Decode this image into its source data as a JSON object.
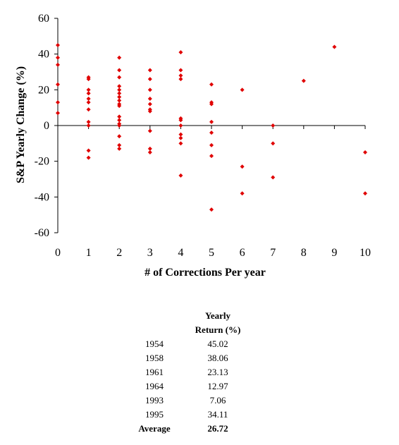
{
  "chart_data": {
    "type": "scatter",
    "title": "",
    "xlabel": "# of Corrections Per year",
    "ylabel": "S&P Yearly Change (%)",
    "xlim": [
      0,
      10
    ],
    "ylim": [
      -60,
      60
    ],
    "x_ticks": [
      "0",
      "1",
      "2",
      "3",
      "4",
      "5",
      "6",
      "7",
      "8",
      "9",
      "10"
    ],
    "y_ticks": [
      "60",
      "40",
      "20",
      "0",
      "-20",
      "-40",
      "-60"
    ],
    "grid": false,
    "legend": "none",
    "marker_color": "#e00000",
    "series": [
      {
        "points": [
          [
            0,
            45
          ],
          [
            0,
            38
          ],
          [
            0,
            34
          ],
          [
            0,
            23
          ],
          [
            0,
            13
          ],
          [
            0,
            7
          ],
          [
            1,
            27
          ],
          [
            1,
            26
          ],
          [
            1,
            20
          ],
          [
            1,
            18
          ],
          [
            1,
            15
          ],
          [
            1,
            13
          ],
          [
            1,
            9
          ],
          [
            1,
            2
          ],
          [
            1,
            0
          ],
          [
            1,
            -14
          ],
          [
            1,
            -18
          ],
          [
            2,
            38
          ],
          [
            2,
            31
          ],
          [
            2,
            27
          ],
          [
            2,
            22
          ],
          [
            2,
            20
          ],
          [
            2,
            18
          ],
          [
            2,
            16
          ],
          [
            2,
            14
          ],
          [
            2,
            12
          ],
          [
            2,
            11
          ],
          [
            2,
            5
          ],
          [
            2,
            3
          ],
          [
            2,
            1
          ],
          [
            2,
            0
          ],
          [
            2,
            -6
          ],
          [
            2,
            -11
          ],
          [
            2,
            -13
          ],
          [
            3,
            31
          ],
          [
            3,
            26
          ],
          [
            3,
            20
          ],
          [
            3,
            15
          ],
          [
            3,
            12
          ],
          [
            3,
            9
          ],
          [
            3,
            8
          ],
          [
            3,
            -3
          ],
          [
            3,
            -13
          ],
          [
            3,
            -15
          ],
          [
            4,
            41
          ],
          [
            4,
            31
          ],
          [
            4,
            28
          ],
          [
            4,
            26
          ],
          [
            4,
            4
          ],
          [
            4,
            3
          ],
          [
            4,
            0
          ],
          [
            4,
            -5
          ],
          [
            4,
            -7
          ],
          [
            4,
            -10
          ],
          [
            4,
            -28
          ],
          [
            5,
            23
          ],
          [
            5,
            13
          ],
          [
            5,
            12
          ],
          [
            5,
            2
          ],
          [
            5,
            -4
          ],
          [
            5,
            -11
          ],
          [
            5,
            -17
          ],
          [
            5,
            -47
          ],
          [
            6,
            20
          ],
          [
            6,
            -23
          ],
          [
            6,
            -38
          ],
          [
            7,
            0
          ],
          [
            7,
            -10
          ],
          [
            7,
            -29
          ],
          [
            8,
            25
          ],
          [
            9,
            44
          ],
          [
            10,
            -15
          ],
          [
            10,
            -38
          ]
        ]
      }
    ]
  },
  "table": {
    "header_line1": "Yearly",
    "header_line2": "Return (%)",
    "rows": [
      {
        "year": "1954",
        "value": "45.02"
      },
      {
        "year": "1958",
        "value": "38.06"
      },
      {
        "year": "1961",
        "value": "23.13"
      },
      {
        "year": "1964",
        "value": "12.97"
      },
      {
        "year": "1993",
        "value": "7.06"
      },
      {
        "year": "1995",
        "value": "34.11"
      }
    ],
    "average_label": "Average",
    "average_value": "26.72"
  }
}
